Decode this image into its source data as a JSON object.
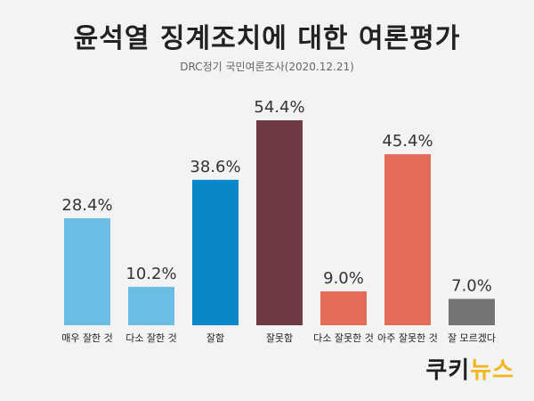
{
  "title": "윤석열 징계조치에 대한 여론평가",
  "subtitle": "DRC정기 국민여론조사(2020.12.21)",
  "logo": {
    "part1": "쿠키",
    "part2": "뉴스"
  },
  "chart_data": {
    "type": "bar",
    "categories": [
      "매우 잘한 것",
      "다소 잘한 것",
      "잘함",
      "잘못함",
      "다소 잘못한 것",
      "아주 잘못한 것",
      "잘 모르겠다"
    ],
    "values": [
      28.4,
      10.2,
      38.6,
      54.4,
      9.0,
      45.4,
      7.0
    ],
    "value_labels": [
      "28.4%",
      "10.2%",
      "38.6%",
      "54.4%",
      "9.0%",
      "45.4%",
      "7.0%"
    ],
    "colors": [
      "#6cbde3",
      "#6cbde3",
      "#0a87c9",
      "#6e3a44",
      "#e26b5a",
      "#e26b5a",
      "#747474"
    ],
    "title": "윤석열 징계조치에 대한 여론평가",
    "xlabel": "",
    "ylabel": "",
    "ylim": [
      0,
      60
    ],
    "grid": false,
    "legend": "none"
  }
}
